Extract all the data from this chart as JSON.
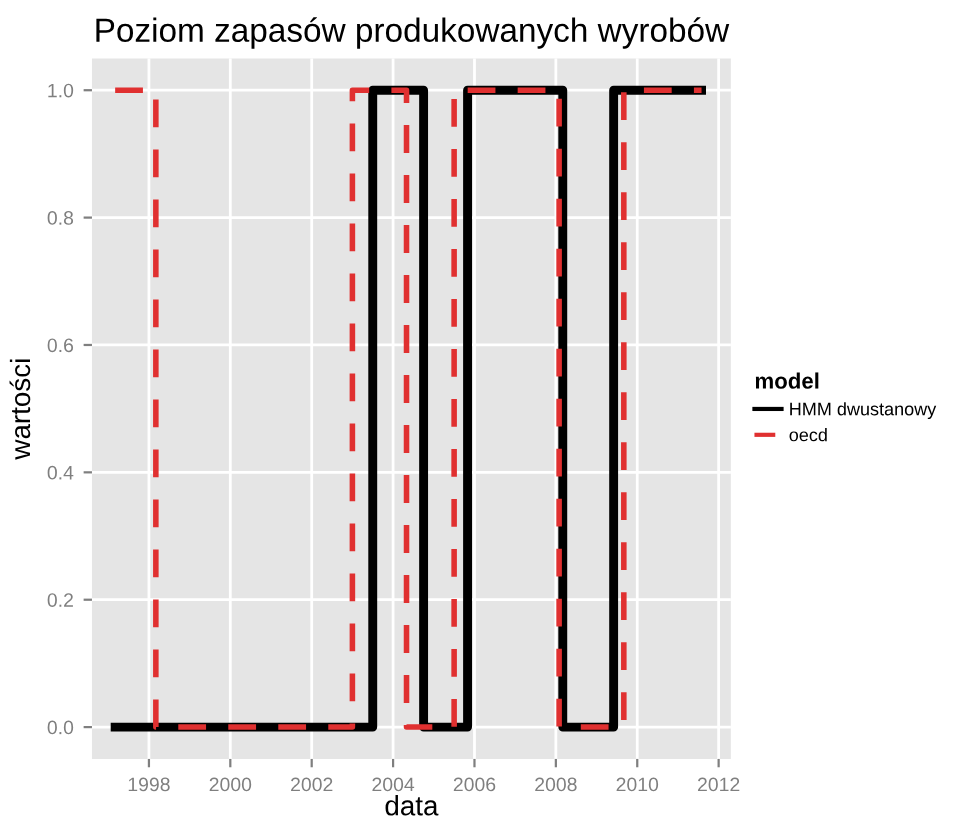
{
  "chart_data": {
    "type": "step",
    "title": "Poziom zapasów produkowanych wyrobów",
    "xlabel": "data",
    "ylabel": "wartości",
    "legend_title": "model",
    "legend": "right",
    "grid": true,
    "xlim": [
      1996.6,
      2012.3
    ],
    "xticks": [
      1998,
      2000,
      2002,
      2004,
      2006,
      2008,
      2010,
      2012
    ],
    "ylim": [
      -0.05,
      1.05
    ],
    "yticks": [
      {
        "value": 0,
        "label": "0.0"
      },
      {
        "value": 0.2,
        "label": "0.2"
      },
      {
        "value": 0.4,
        "label": "0.4"
      },
      {
        "value": 0.6,
        "label": "0.6"
      },
      {
        "value": 0.8,
        "label": "0.8"
      },
      {
        "value": 1,
        "label": "1.0"
      }
    ],
    "series": [
      {
        "name": "HMM dwustanowy",
        "color": "#000000",
        "line_style": "solid",
        "x": [
          1997.17,
          2003.5,
          2004.75,
          2005.83,
          2008.17,
          2009.42,
          2011.58
        ],
        "values": [
          0,
          1,
          0,
          1,
          0,
          1,
          1
        ]
      },
      {
        "name": "oecd",
        "color": "#e03030",
        "line_style": "dashed",
        "x": [
          1997.17,
          1998.17,
          2003.0,
          2004.33,
          2005.5,
          2008.08,
          2009.67,
          2011.58
        ],
        "values": [
          1,
          0,
          1,
          0,
          1,
          0,
          1,
          1
        ]
      }
    ]
  }
}
